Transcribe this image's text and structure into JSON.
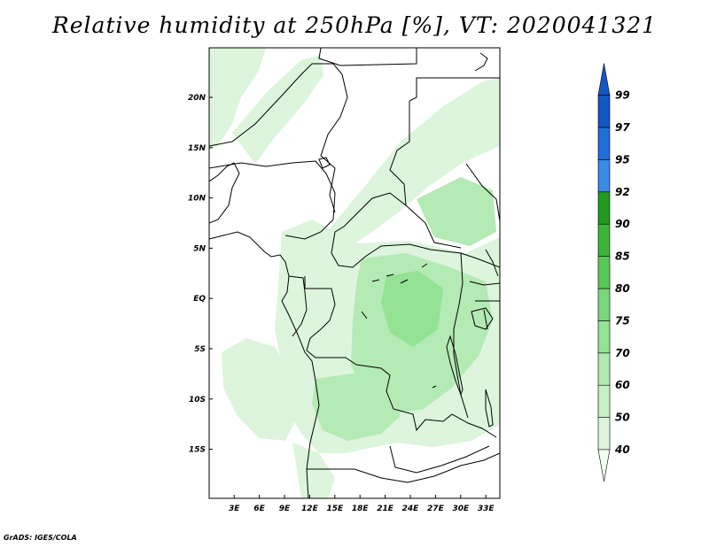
{
  "title": "Relative humidity at 250hPa [%], VT: 2020041321",
  "credit": "GrADS: IGES/COLA",
  "map": {
    "lon_ticks": [
      "3E",
      "6E",
      "9E",
      "12E",
      "15E",
      "18E",
      "21E",
      "24E",
      "27E",
      "30E",
      "33E"
    ],
    "lat_ticks": [
      "20N",
      "15N",
      "10N",
      "5N",
      "EQ",
      "5S",
      "10S",
      "15S"
    ]
  },
  "colorbar": {
    "labels": [
      "40",
      "50",
      "60",
      "70",
      "75",
      "80",
      "85",
      "90",
      "92",
      "95",
      "97",
      "99"
    ],
    "colors": [
      "#f0fff0",
      "#dcf5dc",
      "#c6f0c6",
      "#b0eab0",
      "#94e294",
      "#7ad67a",
      "#58c858",
      "#3cb43c",
      "#209a20",
      "#3a8ae6",
      "#1f6ed8",
      "#1456c6"
    ]
  },
  "fill_colors": {
    "light": "#dcf5dc",
    "medium": "#b4eab4",
    "strong": "#94e294"
  }
}
